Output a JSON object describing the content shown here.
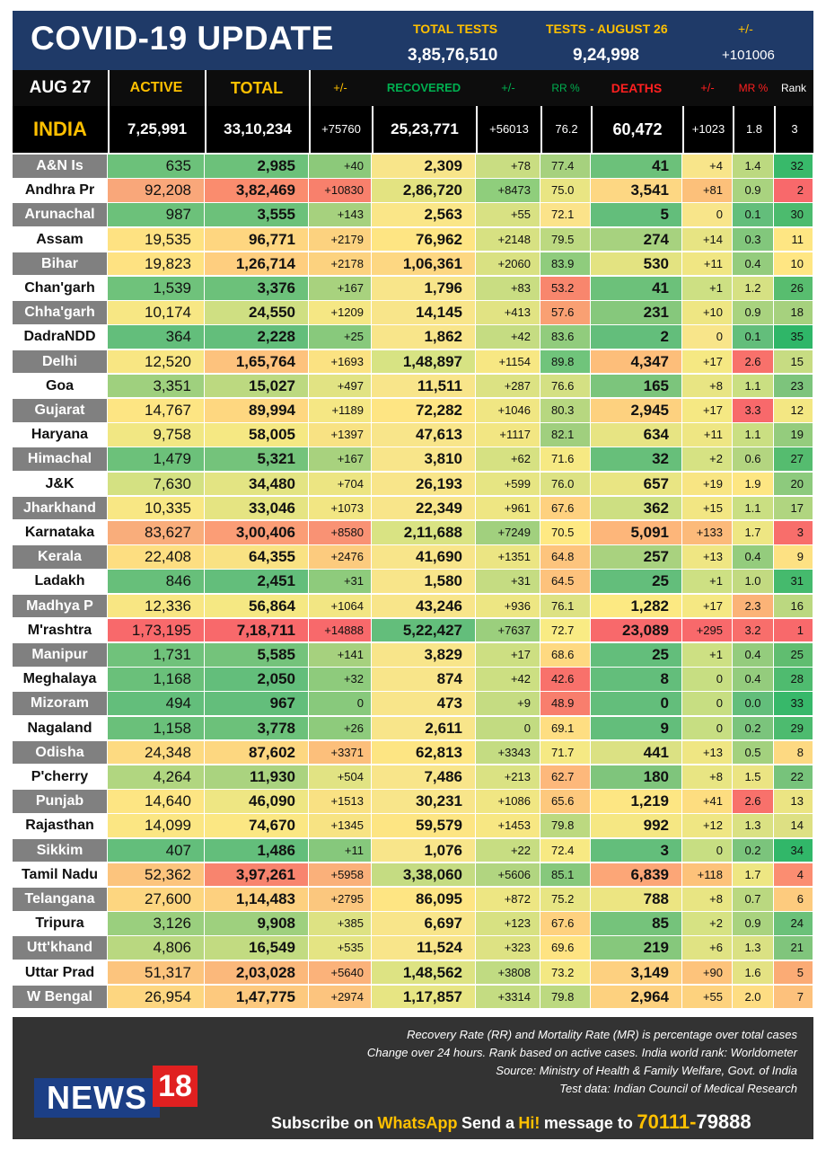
{
  "header": {
    "title": "COVID-19 UPDATE",
    "total_tests_label": "TOTAL TESTS",
    "total_tests_value": "3,85,76,510",
    "tests_day_label": "TESTS - AUGUST 26",
    "tests_day_value": "9,24,998",
    "change_label": "+/-",
    "change_value": "+101006"
  },
  "columns": {
    "date": "AUG 27",
    "active": "ACTIVE",
    "total": "TOTAL",
    "total_change": "+/-",
    "recovered": "RECOVERED",
    "recovered_change": "+/-",
    "rr": "RR %",
    "deaths": "DEATHS",
    "deaths_change": "+/-",
    "mr": "MR %",
    "rank": "Rank"
  },
  "colors": {
    "header_bg": "#1f3a68",
    "accent_yellow": "#ffc000",
    "recovered_green": "#00b050",
    "deaths_red": "#ff2020",
    "footer_bg": "#333333",
    "name_gray": "#808080"
  },
  "india": {
    "name": "INDIA",
    "active": "7,25,991",
    "total": "33,10,234",
    "total_change": "+75760",
    "recovered": "25,23,771",
    "recovered_change": "+56013",
    "rr": "76.2",
    "deaths": "60,472",
    "deaths_change": "+1023",
    "mr": "1.8",
    "rank": "3"
  },
  "states": [
    {
      "name": "A&N Is",
      "active": "635",
      "total": "2,985",
      "total_change": "+40",
      "recovered": "2,309",
      "recovered_change": "+78",
      "rr": "77.4",
      "deaths": "41",
      "deaths_change": "+4",
      "mr": "1.4",
      "rank": "32",
      "colors": [
        "#6cc17a",
        "#6cc17a",
        "#8cc97a",
        "#f8e58a",
        "#c9dd82",
        "#a6d17e",
        "#6cc17a",
        "#f8e58a",
        "#bcd980",
        "#38b96a"
      ]
    },
    {
      "name": "Andhra Pr",
      "active": "92,208",
      "total": "3,82,469",
      "total_change": "+10830",
      "recovered": "2,86,720",
      "recovered_change": "+8473",
      "rr": "75.0",
      "deaths": "3,541",
      "deaths_change": "+81",
      "mr": "0.9",
      "rank": "2",
      "colors": [
        "#f9a77a",
        "#fa8c6e",
        "#f8806c",
        "#e3e381",
        "#8fce7c",
        "#e9e583",
        "#fdd783",
        "#fcc07a",
        "#a9d37f",
        "#f8696b"
      ]
    },
    {
      "name": "Arunachal",
      "active": "987",
      "total": "3,555",
      "total_change": "+143",
      "recovered": "2,563",
      "recovered_change": "+55",
      "rr": "72.1",
      "deaths": "5",
      "deaths_change": "0",
      "mr": "0.1",
      "rank": "30",
      "colors": [
        "#6cc17a",
        "#6cc17a",
        "#a6d17e",
        "#fae688",
        "#d8e183",
        "#fbe38a",
        "#63be7b",
        "#f8e58a",
        "#63be7b",
        "#4cbb6e"
      ]
    },
    {
      "name": "Assam",
      "active": "19,535",
      "total": "96,771",
      "total_change": "+2179",
      "recovered": "76,962",
      "recovered_change": "+2148",
      "rr": "79.5",
      "deaths": "274",
      "deaths_change": "+14",
      "mr": "0.3",
      "rank": "11",
      "colors": [
        "#fee282",
        "#fed680",
        "#fcd27f",
        "#fee583",
        "#d7e182",
        "#bcd980",
        "#a7d27f",
        "#e7e483",
        "#82c77c",
        "#fee683"
      ]
    },
    {
      "name": "Bihar",
      "active": "19,823",
      "total": "1,26,714",
      "total_change": "+2178",
      "recovered": "1,06,361",
      "recovered_change": "+2060",
      "rr": "83.9",
      "deaths": "530",
      "deaths_change": "+11",
      "mr": "0.4",
      "rank": "10",
      "colors": [
        "#fee282",
        "#fece7f",
        "#fcd27f",
        "#fdd782",
        "#d9e182",
        "#8fcc7d",
        "#e3e381",
        "#f0e683",
        "#94cc7d",
        "#ffe683"
      ]
    },
    {
      "name": "Chan'garh",
      "active": "1,539",
      "total": "3,376",
      "total_change": "+167",
      "recovered": "1,796",
      "recovered_change": "+83",
      "rr": "53.2",
      "deaths": "41",
      "deaths_change": "+1",
      "mr": "1.2",
      "rank": "26",
      "colors": [
        "#6fc27b",
        "#6cc17a",
        "#a8d27e",
        "#f8e58a",
        "#c9dd82",
        "#f8866d",
        "#6cc17a",
        "#cde083",
        "#d6e183",
        "#58bd6f"
      ]
    },
    {
      "name": "Chha'garh",
      "active": "10,174",
      "total": "24,550",
      "total_change": "+1209",
      "recovered": "14,145",
      "recovered_change": "+413",
      "rr": "57.6",
      "deaths": "231",
      "deaths_change": "+10",
      "mr": "0.9",
      "rank": "18",
      "colors": [
        "#f7e784",
        "#cfdf82",
        "#f5e784",
        "#f8e58a",
        "#e1e383",
        "#f9a073",
        "#86c87c",
        "#eee683",
        "#a9d37f",
        "#a6d17e"
      ]
    },
    {
      "name": "DadraNDD",
      "active": "364",
      "total": "2,228",
      "total_change": "+25",
      "recovered": "1,862",
      "recovered_change": "+42",
      "rr": "83.6",
      "deaths": "2",
      "deaths_change": "0",
      "mr": "0.1",
      "rank": "35",
      "colors": [
        "#63be7b",
        "#63be7b",
        "#88c97c",
        "#f8e58a",
        "#c5dc82",
        "#91cc7d",
        "#63be7b",
        "#f8e58a",
        "#63be7b",
        "#2fb668"
      ]
    },
    {
      "name": "Delhi",
      "active": "12,520",
      "total": "1,65,764",
      "total_change": "+1693",
      "recovered": "1,48,897",
      "recovered_change": "+1154",
      "rr": "89.8",
      "deaths": "4,347",
      "deaths_change": "+17",
      "mr": "2.6",
      "rank": "15",
      "colors": [
        "#f8e683",
        "#fdc27d",
        "#fbe282",
        "#d7e383",
        "#f7e783",
        "#70c47b",
        "#fdbe7a",
        "#f5e883",
        "#f8716b",
        "#c7dc82"
      ]
    },
    {
      "name": "Goa",
      "active": "3,351",
      "total": "15,027",
      "total_change": "+497",
      "recovered": "11,511",
      "recovered_change": "+287",
      "rr": "76.6",
      "deaths": "165",
      "deaths_change": "+8",
      "mr": "1.1",
      "rank": "23",
      "colors": [
        "#9fd07e",
        "#bcd980",
        "#e1e383",
        "#f8e58a",
        "#dce283",
        "#d4e083",
        "#7cc57c",
        "#e8e583",
        "#cadf82",
        "#7dc47c"
      ]
    },
    {
      "name": "Gujarat",
      "active": "14,767",
      "total": "89,994",
      "total_change": "+1189",
      "recovered": "72,282",
      "recovered_change": "+1046",
      "rr": "80.3",
      "deaths": "2,945",
      "deaths_change": "+17",
      "mr": "3.3",
      "rank": "12",
      "colors": [
        "#fde583",
        "#fed780",
        "#f5e784",
        "#fee583",
        "#f0e683",
        "#b7d780",
        "#fdd17f",
        "#f5e883",
        "#f8696b",
        "#f3e783"
      ]
    },
    {
      "name": "Haryana",
      "active": "9,758",
      "total": "58,005",
      "total_change": "+1397",
      "recovered": "47,613",
      "recovered_change": "+1117",
      "rr": "82.1",
      "deaths": "634",
      "deaths_change": "+11",
      "mr": "1.1",
      "rank": "19",
      "colors": [
        "#f1e783",
        "#f5e883",
        "#f8e283",
        "#f8e58a",
        "#f2e683",
        "#a0cf7e",
        "#e7e483",
        "#eee683",
        "#cadf82",
        "#94cc7d"
      ]
    },
    {
      "name": "Himachal",
      "active": "1,479",
      "total": "5,321",
      "total_change": "+167",
      "recovered": "3,810",
      "recovered_change": "+62",
      "rr": "71.6",
      "deaths": "32",
      "deaths_change": "+2",
      "mr": "0.6",
      "rank": "27",
      "colors": [
        "#6cc17a",
        "#74c37b",
        "#a8d27e",
        "#f8e58a",
        "#d6e182",
        "#f6e983",
        "#67bf7a",
        "#d6e283",
        "#b3d580",
        "#55bc6f"
      ]
    },
    {
      "name": "J&K",
      "active": "7,630",
      "total": "34,480",
      "total_change": "+704",
      "recovered": "26,193",
      "recovered_change": "+599",
      "rr": "76.0",
      "deaths": "657",
      "deaths_change": "+19",
      "mr": "1.9",
      "rank": "20",
      "colors": [
        "#d4e182",
        "#e3e483",
        "#ece582",
        "#f8e58a",
        "#e6e583",
        "#dce283",
        "#e9e583",
        "#f8e583",
        "#fde683",
        "#8dca7d"
      ]
    },
    {
      "name": "Jharkhand",
      "active": "10,335",
      "total": "33,046",
      "total_change": "+1073",
      "recovered": "22,349",
      "recovered_change": "+961",
      "rr": "67.6",
      "deaths": "362",
      "deaths_change": "+15",
      "mr": "1.1",
      "rank": "17",
      "colors": [
        "#f8e784",
        "#e5e482",
        "#f2e683",
        "#f8e58a",
        "#eee683",
        "#fed17f",
        "#cddf82",
        "#f2e683",
        "#cadf82",
        "#b0d580"
      ]
    },
    {
      "name": "Karnataka",
      "active": "83,627",
      "total": "3,00,406",
      "total_change": "+8580",
      "recovered": "2,11,688",
      "recovered_change": "+7249",
      "rr": "70.5",
      "deaths": "5,091",
      "deaths_change": "+133",
      "mr": "1.7",
      "rank": "3",
      "colors": [
        "#f9ad7b",
        "#fb9d76",
        "#f99274",
        "#d9e383",
        "#a1d07e",
        "#fee983",
        "#fdb67a",
        "#fcba7a",
        "#eee683",
        "#f86e6b"
      ]
    },
    {
      "name": "Kerala",
      "active": "22,408",
      "total": "64,355",
      "total_change": "+2476",
      "recovered": "41,690",
      "recovered_change": "+1351",
      "rr": "64.8",
      "deaths": "257",
      "deaths_change": "+13",
      "mr": "0.4",
      "rank": "9",
      "colors": [
        "#fdde81",
        "#f9e283",
        "#fccb7e",
        "#f8e58a",
        "#ebe583",
        "#fdc47d",
        "#a9d27f",
        "#efe683",
        "#94cc7d",
        "#fde183"
      ]
    },
    {
      "name": "Ladakh",
      "active": "846",
      "total": "2,451",
      "total_change": "+31",
      "recovered": "1,580",
      "recovered_change": "+31",
      "rr": "64.5",
      "deaths": "25",
      "deaths_change": "+1",
      "mr": "1.0",
      "rank": "31",
      "colors": [
        "#67bf7a",
        "#63be7b",
        "#8ecb7c",
        "#f8e58a",
        "#c5dc82",
        "#fdc27c",
        "#63be7b",
        "#cde083",
        "#c2da81",
        "#45ba6d"
      ]
    },
    {
      "name": "Madhya P",
      "active": "12,336",
      "total": "56,864",
      "total_change": "+1064",
      "recovered": "43,246",
      "recovered_change": "+936",
      "rr": "76.1",
      "deaths": "1,282",
      "deaths_change": "+17",
      "mr": "2.3",
      "rank": "16",
      "colors": [
        "#f8e683",
        "#f5e883",
        "#f2e683",
        "#f8e58a",
        "#ede683",
        "#dde283",
        "#fce982",
        "#f5e883",
        "#fbb377",
        "#bbd880"
      ]
    },
    {
      "name": "M'rashtra",
      "active": "1,73,195",
      "total": "7,18,711",
      "total_change": "+14888",
      "recovered": "5,22,427",
      "recovered_change": "+7637",
      "rr": "72.7",
      "deaths": "23,089",
      "deaths_change": "+295",
      "mr": "3.2",
      "rank": "1",
      "colors": [
        "#f8696b",
        "#f8696b",
        "#f8696b",
        "#63be7b",
        "#9bcf7d",
        "#f9eb84",
        "#f8696b",
        "#f8696b",
        "#f86e6b",
        "#f8696b"
      ]
    },
    {
      "name": "Manipur",
      "active": "1,731",
      "total": "5,585",
      "total_change": "+141",
      "recovered": "3,829",
      "recovered_change": "+17",
      "rr": "68.6",
      "deaths": "25",
      "deaths_change": "+1",
      "mr": "0.4",
      "rank": "25",
      "colors": [
        "#70c27b",
        "#74c37b",
        "#a6d17e",
        "#f8e58a",
        "#cddf82",
        "#fed981",
        "#63be7b",
        "#cde083",
        "#94cc7d",
        "#60bd70"
      ]
    },
    {
      "name": "Meghalaya",
      "active": "1,168",
      "total": "2,050",
      "total_change": "+32",
      "recovered": "874",
      "recovered_change": "+42",
      "rr": "42.6",
      "deaths": "8",
      "deaths_change": "0",
      "mr": "0.4",
      "rank": "28",
      "colors": [
        "#6ac07a",
        "#63be7b",
        "#8ecb7c",
        "#f8e58a",
        "#ccdf82",
        "#f8716b",
        "#63be7b",
        "#c7de82",
        "#94cc7d",
        "#4fbb6f"
      ]
    },
    {
      "name": "Mizoram",
      "active": "494",
      "total": "967",
      "total_change": "0",
      "recovered": "473",
      "recovered_change": "+9",
      "rr": "48.9",
      "deaths": "0",
      "deaths_change": "0",
      "mr": "0.0",
      "rank": "33",
      "colors": [
        "#63be7b",
        "#63be7b",
        "#88c97c",
        "#f8e58a",
        "#c5dc82",
        "#f87e6d",
        "#63be7b",
        "#c7de82",
        "#63be7b",
        "#37b86a"
      ]
    },
    {
      "name": "Nagaland",
      "active": "1,158",
      "total": "3,778",
      "total_change": "+26",
      "recovered": "2,611",
      "recovered_change": "0",
      "rr": "69.1",
      "deaths": "9",
      "deaths_change": "0",
      "mr": "0.2",
      "rank": "29",
      "colors": [
        "#6ac07a",
        "#6cc17a",
        "#8ecb7c",
        "#f8e58a",
        "#c2db81",
        "#fede82",
        "#63be7b",
        "#c7de82",
        "#7bc47c",
        "#4dbb6f"
      ]
    },
    {
      "name": "Odisha",
      "active": "24,348",
      "total": "87,602",
      "total_change": "+3371",
      "recovered": "62,813",
      "recovered_change": "+3343",
      "rr": "71.7",
      "deaths": "441",
      "deaths_change": "+13",
      "mr": "0.5",
      "rank": "8",
      "colors": [
        "#fdda81",
        "#fdd780",
        "#fcbf7b",
        "#fde583",
        "#c4dc82",
        "#f5e984",
        "#dbe183",
        "#efe683",
        "#a3d17e",
        "#fdd982"
      ]
    },
    {
      "name": "P'cherry",
      "active": "4,264",
      "total": "11,930",
      "total_change": "+504",
      "recovered": "7,486",
      "recovered_change": "+213",
      "rr": "62.7",
      "deaths": "180",
      "deaths_change": "+8",
      "mr": "1.5",
      "rank": "22",
      "colors": [
        "#b1d680",
        "#aad37f",
        "#e1e383",
        "#f8e58a",
        "#dae283",
        "#fdb87b",
        "#7fc57c",
        "#e8e583",
        "#ebe483",
        "#77c37b"
      ]
    },
    {
      "name": "Punjab",
      "active": "14,640",
      "total": "46,090",
      "total_change": "+1513",
      "recovered": "30,231",
      "recovered_change": "+1086",
      "rr": "65.6",
      "deaths": "1,219",
      "deaths_change": "+41",
      "mr": "2.6",
      "rank": "13",
      "colors": [
        "#fde583",
        "#eee683",
        "#f9e183",
        "#f8e58a",
        "#f0e683",
        "#fdc87d",
        "#fde683",
        "#fddd80",
        "#f8716b",
        "#ebe483"
      ]
    },
    {
      "name": "Rajasthan",
      "active": "14,099",
      "total": "74,670",
      "total_change": "+1345",
      "recovered": "59,579",
      "recovered_change": "+1453",
      "rr": "79.8",
      "deaths": "992",
      "deaths_change": "+12",
      "mr": "1.3",
      "rank": "14",
      "colors": [
        "#fbe683",
        "#fbe783",
        "#f7e383",
        "#fde583",
        "#f7e783",
        "#bcd980",
        "#f5e783",
        "#efe683",
        "#dae183",
        "#dde083"
      ]
    },
    {
      "name": "Sikkim",
      "active": "407",
      "total": "1,486",
      "total_change": "+11",
      "recovered": "1,076",
      "recovered_change": "+22",
      "rr": "72.4",
      "deaths": "3",
      "deaths_change": "0",
      "mr": "0.2",
      "rank": "34",
      "colors": [
        "#63be7b",
        "#63be7b",
        "#86c87c",
        "#f8e58a",
        "#c7dd82",
        "#f7e983",
        "#63be7b",
        "#c7de82",
        "#7bc47c",
        "#31b769"
      ]
    },
    {
      "name": "Tamil Nadu",
      "active": "52,362",
      "total": "3,97,261",
      "total_change": "+5958",
      "recovered": "3,38,060",
      "recovered_change": "+5606",
      "rr": "85.1",
      "deaths": "6,839",
      "deaths_change": "+118",
      "mr": "1.7",
      "rank": "4",
      "colors": [
        "#fcc47d",
        "#f8846e",
        "#fab07a",
        "#c5dc82",
        "#b1d580",
        "#86c87c",
        "#fca677",
        "#fdc27a",
        "#eee683",
        "#fb8d71"
      ]
    },
    {
      "name": "Telangana",
      "active": "27,600",
      "total": "1,14,483",
      "total_change": "+2795",
      "recovered": "86,095",
      "recovered_change": "+872",
      "rr": "75.2",
      "deaths": "788",
      "deaths_change": "+8",
      "mr": "0.7",
      "rank": "6",
      "colors": [
        "#fdd680",
        "#fdd07f",
        "#fbc77e",
        "#fee583",
        "#ede683",
        "#e7e583",
        "#ece582",
        "#e8e583",
        "#bad880",
        "#fdcb7e"
      ]
    },
    {
      "name": "Tripura",
      "active": "3,126",
      "total": "9,908",
      "total_change": "+385",
      "recovered": "6,697",
      "recovered_change": "+123",
      "rr": "67.6",
      "deaths": "85",
      "deaths_change": "+2",
      "mr": "0.9",
      "rank": "24",
      "colors": [
        "#9acf7e",
        "#9ed07e",
        "#dde283",
        "#f8e58a",
        "#d7e182",
        "#fed17f",
        "#75c37b",
        "#d6e283",
        "#a9d37f",
        "#6bc179"
      ]
    },
    {
      "name": "Utt'khand",
      "active": "4,806",
      "total": "16,549",
      "total_change": "+535",
      "recovered": "11,524",
      "recovered_change": "+323",
      "rr": "69.6",
      "deaths": "219",
      "deaths_change": "+6",
      "mr": "1.3",
      "rank": "21",
      "colors": [
        "#b9d880",
        "#c2db81",
        "#e4e483",
        "#f8e58a",
        "#dde283",
        "#fee382",
        "#86c87c",
        "#e0e383",
        "#dae183",
        "#80c57c"
      ]
    },
    {
      "name": "Uttar Prad",
      "active": "51,317",
      "total": "2,03,028",
      "total_change": "+5640",
      "recovered": "1,48,562",
      "recovered_change": "+3808",
      "rr": "73.2",
      "deaths": "3,149",
      "deaths_change": "+90",
      "mr": "1.6",
      "rank": "5",
      "colors": [
        "#fcc47d",
        "#fbb87b",
        "#fbb27a",
        "#dde383",
        "#c0db82",
        "#f3e883",
        "#fdd080",
        "#fdc37b",
        "#e4e283",
        "#fbab75"
      ]
    },
    {
      "name": "W Bengal",
      "active": "26,954",
      "total": "1,47,775",
      "total_change": "+2974",
      "recovered": "1,17,857",
      "recovered_change": "+3314",
      "rr": "79.8",
      "deaths": "2,964",
      "deaths_change": "+55",
      "mr": "2.0",
      "rank": "7",
      "colors": [
        "#fdd680",
        "#fdc97e",
        "#fcc47e",
        "#e7e583",
        "#c4dc82",
        "#bcd980",
        "#fdd17f",
        "#fdd27e",
        "#fedd83",
        "#fdc17c"
      ]
    }
  ],
  "footer": {
    "note1": "Recovery Rate (RR) and Mortality Rate (MR) is percentage over total cases",
    "note2": "Change over 24 hours. Rank based on active cases. India world rank: Worldometer",
    "note3": "Source: Ministry of Health & Family Welfare, Govt. of India",
    "note4": "Test data: Indian Council of Medical Research",
    "logo_text": "NEWS",
    "logo_number": "18",
    "subscribe_prefix": "Subscribe on",
    "subscribe_app": "WhatsApp",
    "subscribe_mid": "Send a",
    "subscribe_hi": "Hi!",
    "subscribe_msg": "message to",
    "phone_a": "70111-",
    "phone_b": "79888"
  }
}
